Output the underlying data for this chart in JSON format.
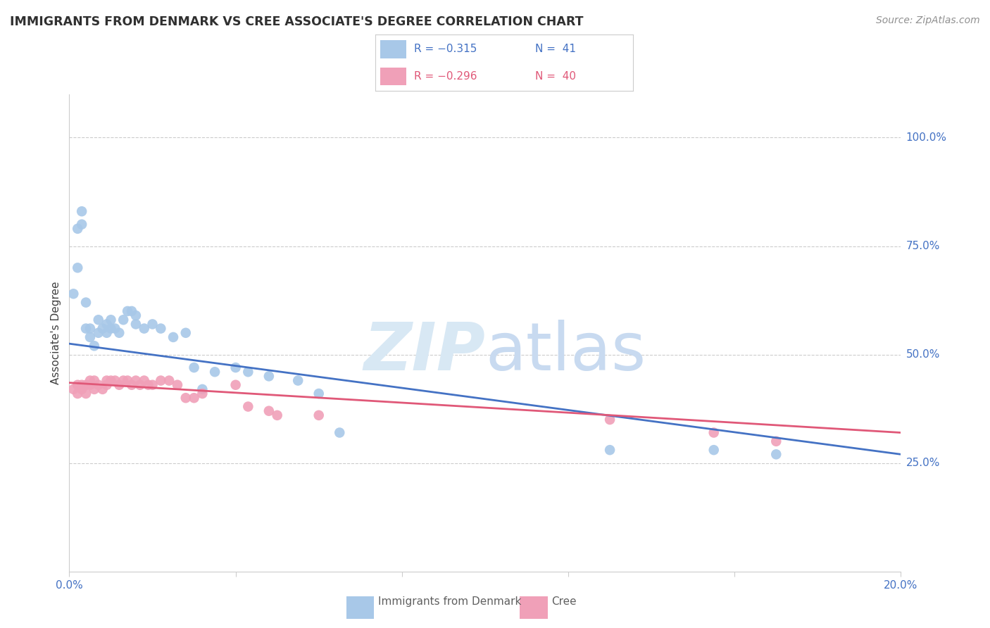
{
  "title": "IMMIGRANTS FROM DENMARK VS CREE ASSOCIATE'S DEGREE CORRELATION CHART",
  "source": "Source: ZipAtlas.com",
  "ylabel": "Associate's Degree",
  "y_tick_labels": [
    "100.0%",
    "75.0%",
    "50.0%",
    "25.0%"
  ],
  "y_tick_values": [
    1.0,
    0.75,
    0.5,
    0.25
  ],
  "x_range": [
    0.0,
    0.2
  ],
  "y_range": [
    0.0,
    1.1
  ],
  "denmark_x": [
    0.001,
    0.002,
    0.002,
    0.003,
    0.003,
    0.004,
    0.004,
    0.005,
    0.005,
    0.006,
    0.007,
    0.007,
    0.008,
    0.009,
    0.009,
    0.01,
    0.01,
    0.011,
    0.012,
    0.013,
    0.014,
    0.015,
    0.016,
    0.016,
    0.018,
    0.02,
    0.022,
    0.025,
    0.028,
    0.03,
    0.032,
    0.035,
    0.04,
    0.043,
    0.048,
    0.055,
    0.06,
    0.065,
    0.13,
    0.155,
    0.17
  ],
  "denmark_y": [
    0.64,
    0.7,
    0.79,
    0.8,
    0.83,
    0.56,
    0.62,
    0.54,
    0.56,
    0.52,
    0.55,
    0.58,
    0.56,
    0.55,
    0.57,
    0.56,
    0.58,
    0.56,
    0.55,
    0.58,
    0.6,
    0.6,
    0.57,
    0.59,
    0.56,
    0.57,
    0.56,
    0.54,
    0.55,
    0.47,
    0.42,
    0.46,
    0.47,
    0.46,
    0.45,
    0.44,
    0.41,
    0.32,
    0.28,
    0.28,
    0.27
  ],
  "cree_x": [
    0.001,
    0.002,
    0.002,
    0.003,
    0.003,
    0.004,
    0.004,
    0.005,
    0.005,
    0.006,
    0.006,
    0.007,
    0.008,
    0.009,
    0.009,
    0.01,
    0.011,
    0.012,
    0.013,
    0.014,
    0.015,
    0.016,
    0.017,
    0.018,
    0.019,
    0.02,
    0.022,
    0.024,
    0.026,
    0.028,
    0.03,
    0.032,
    0.04,
    0.043,
    0.048,
    0.05,
    0.06,
    0.13,
    0.155,
    0.17
  ],
  "cree_y": [
    0.42,
    0.41,
    0.43,
    0.42,
    0.43,
    0.41,
    0.43,
    0.43,
    0.44,
    0.42,
    0.44,
    0.43,
    0.42,
    0.44,
    0.43,
    0.44,
    0.44,
    0.43,
    0.44,
    0.44,
    0.43,
    0.44,
    0.43,
    0.44,
    0.43,
    0.43,
    0.44,
    0.44,
    0.43,
    0.4,
    0.4,
    0.41,
    0.43,
    0.38,
    0.37,
    0.36,
    0.36,
    0.35,
    0.32,
    0.3
  ],
  "denmark_color": "#a8c8e8",
  "cree_color": "#f0a0b8",
  "denmark_line_color": "#4472c4",
  "cree_line_color": "#e05878",
  "watermark_zip_color": "#d8e8f4",
  "watermark_atlas_color": "#c8daf0",
  "background_color": "#ffffff",
  "grid_color": "#cccccc",
  "title_color": "#303030",
  "axis_color": "#4472c4",
  "source_color": "#909090",
  "legend_r1": "R = −0.315",
  "legend_n1": "N =  41",
  "legend_r2": "R = −0.296",
  "legend_n2": "N =  40",
  "legend_label1": "Immigrants from Denmark",
  "legend_label2": "Cree"
}
